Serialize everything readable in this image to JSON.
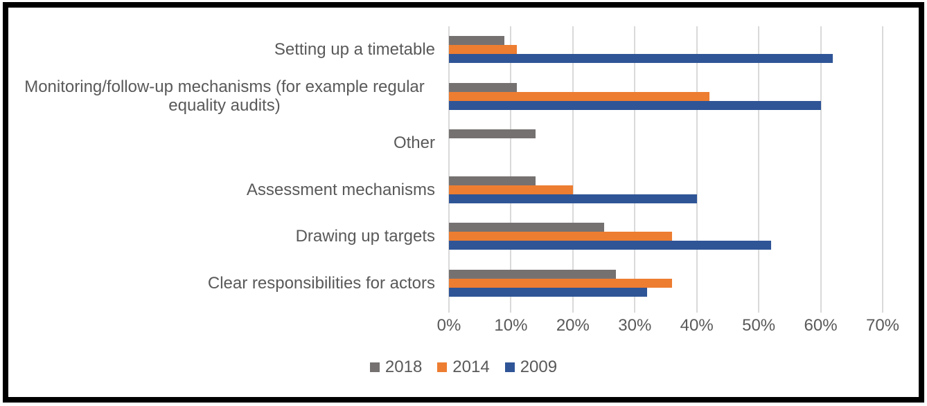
{
  "chart_data": {
    "type": "bar",
    "orientation": "horizontal",
    "title": "",
    "xlabel": "",
    "ylabel": "",
    "categories": [
      "Setting up a timetable",
      "Monitoring/follow-up mechanisms (for example regular equality audits)",
      "Other",
      "Assessment mechanisms",
      "Drawing up targets",
      "Clear responsibilities for actors"
    ],
    "series": [
      {
        "name": "2018",
        "color": "#767171",
        "values": [
          9,
          11,
          14,
          14,
          25,
          27
        ]
      },
      {
        "name": "2014",
        "color": "#ED7D31",
        "values": [
          11,
          42,
          0,
          20,
          36,
          36
        ]
      },
      {
        "name": "2009",
        "color": "#2F5597",
        "values": [
          62,
          60,
          0,
          40,
          52,
          32
        ]
      }
    ],
    "x_ticks": [
      "0%",
      "10%",
      "20%",
      "30%",
      "40%",
      "50%",
      "60%",
      "70%"
    ],
    "x_max": 70,
    "xlim": [
      0,
      70
    ],
    "grid": true,
    "legend_position": "bottom",
    "value_unit": "%"
  },
  "colors": {
    "gridline": "#D9D9D9",
    "tick": "#D9D9D9",
    "axis_text": "#595959",
    "background": "#FFFFFF",
    "frame_border": "#000000"
  }
}
